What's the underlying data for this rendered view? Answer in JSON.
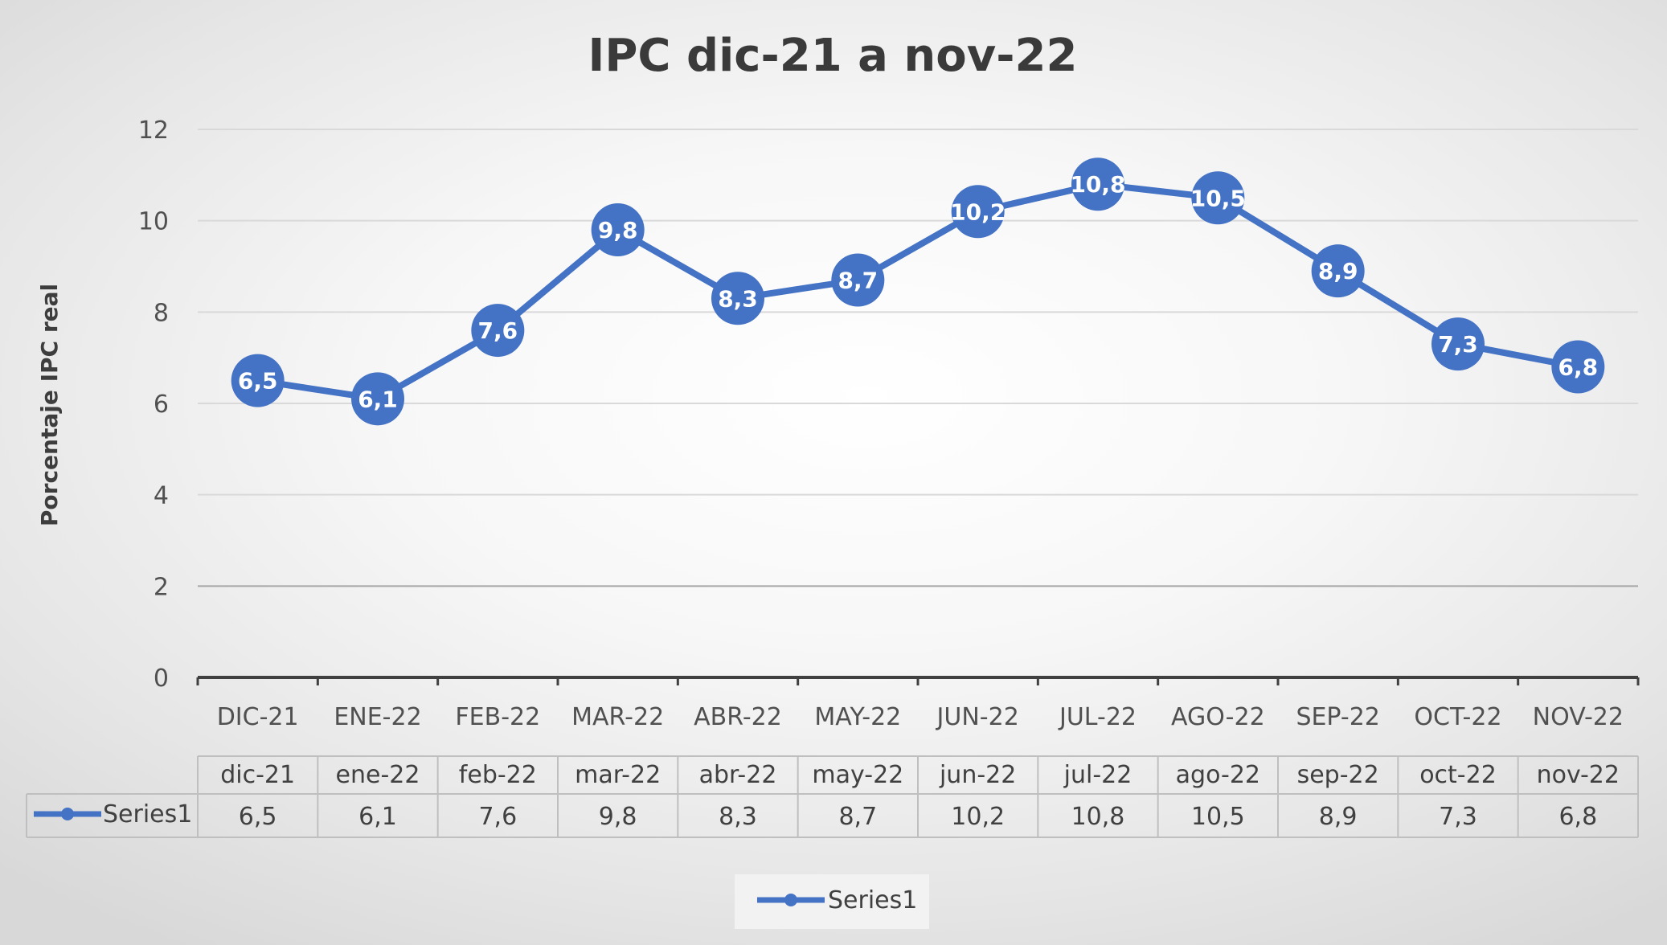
{
  "chart_data": {
    "type": "line",
    "title": "IPC dic-21 a nov-22",
    "ylabel": "Porcentaje IPC real",
    "xlabel": "",
    "ylim": [
      0,
      12
    ],
    "yticks": [
      0,
      2,
      4,
      6,
      8,
      10,
      12
    ],
    "grid": true,
    "legend_position": "bottom",
    "categories_upper": [
      "DIC-21",
      "ENE-22",
      "FEB-22",
      "MAR-22",
      "ABR-22",
      "MAY-22",
      "JUN-22",
      "JUL-22",
      "AGO-22",
      "SEP-22",
      "OCT-22",
      "NOV-22"
    ],
    "categories": [
      "dic-21",
      "ene-22",
      "feb-22",
      "mar-22",
      "abr-22",
      "may-22",
      "jun-22",
      "jul-22",
      "ago-22",
      "sep-22",
      "oct-22",
      "nov-22"
    ],
    "series": [
      {
        "name": "Series1",
        "values": [
          6.5,
          6.1,
          7.6,
          9.8,
          8.3,
          8.7,
          10.2,
          10.8,
          10.5,
          8.9,
          7.3,
          6.8
        ],
        "labels": [
          "6,5",
          "6,1",
          "7,6",
          "9,8",
          "8,3",
          "8,7",
          "10,2",
          "10,8",
          "10,5",
          "8,9",
          "7,3",
          "6,8"
        ],
        "color": "#4472c4"
      }
    ],
    "colors": {
      "gridline": "#d9d9d9",
      "axis": "#404040",
      "table_border": "#bfbfbf"
    }
  }
}
